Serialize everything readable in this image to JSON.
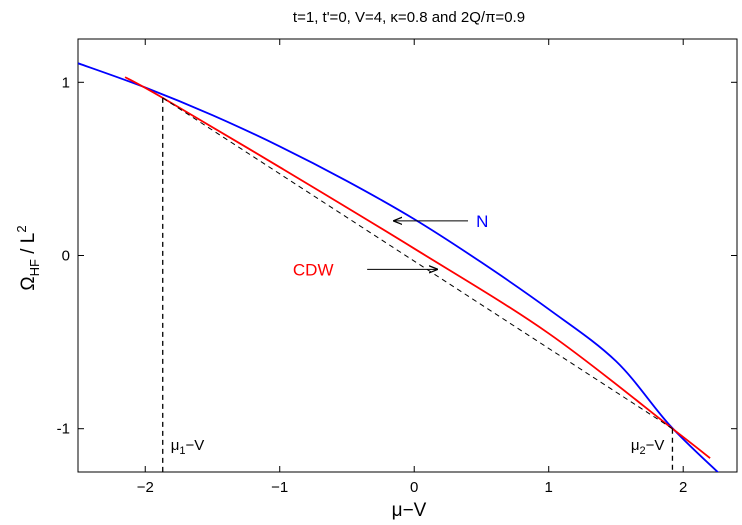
{
  "chart_data": {
    "type": "line",
    "title": "t=1, t'=0, V=4, κ=0.8 and 2Q/π=0.9",
    "xlabel": "μ−V",
    "ylabel_main": "Ω",
    "ylabel_sub": "HF",
    "ylabel_rest": " / L",
    "ylabel_sup": "2",
    "xlim": [
      -2.5,
      2.4
    ],
    "ylim": [
      -1.25,
      1.25
    ],
    "x_ticks": [
      {
        "value": -2,
        "label": "−2"
      },
      {
        "value": -1,
        "label": "−1"
      },
      {
        "value": 0,
        "label": "0"
      },
      {
        "value": 1,
        "label": "1"
      },
      {
        "value": 2,
        "label": "2"
      }
    ],
    "y_ticks": [
      {
        "value": -1,
        "label": "-1"
      },
      {
        "value": 0,
        "label": "0"
      },
      {
        "value": 1,
        "label": "1"
      }
    ],
    "series": [
      {
        "name": "N",
        "color": "#0000ff",
        "style": "solid",
        "points": [
          [
            -2.5,
            1.11
          ],
          [
            -2.0,
            0.97
          ],
          [
            -1.5,
            0.81
          ],
          [
            -1.0,
            0.63
          ],
          [
            -0.5,
            0.43
          ],
          [
            0.0,
            0.21
          ],
          [
            0.5,
            -0.04
          ],
          [
            1.0,
            -0.31
          ],
          [
            1.5,
            -0.61
          ],
          [
            1.9,
            -0.98
          ],
          [
            2.27,
            -1.26
          ]
        ]
      },
      {
        "name": "CDW",
        "color": "#ff0000",
        "style": "solid",
        "points": [
          [
            -2.15,
            1.03
          ],
          [
            -1.87,
            0.91
          ],
          [
            -1.0,
            0.51
          ],
          [
            0.0,
            0.04
          ],
          [
            1.0,
            -0.45
          ],
          [
            1.92,
            -1.0
          ],
          [
            2.2,
            -1.17
          ]
        ]
      },
      {
        "name": "",
        "color": "#000000",
        "style": "dashed",
        "points": [
          [
            -1.87,
            0.91
          ],
          [
            1.92,
            -1.0
          ]
        ]
      }
    ],
    "vertical_markers": [
      {
        "x": -1.87,
        "y_top": 0.91,
        "label_main": "μ",
        "label_sub": "1",
        "label_rest": "−V"
      },
      {
        "x": 1.92,
        "y_top": -1.0,
        "label_main": "μ",
        "label_sub": "2",
        "label_rest": "−V"
      }
    ],
    "annotations": [
      {
        "text": "N",
        "color": "#0000ff",
        "text_x": 0.46,
        "text_y": 0.2,
        "arrow_from": [
          0.4,
          0.2
        ],
        "arrow_to": [
          -0.15,
          0.2
        ]
      },
      {
        "text": "CDW",
        "color": "#ff0000",
        "text_x": -0.6,
        "text_y": -0.08,
        "arrow_from": [
          -0.35,
          -0.08
        ],
        "arrow_to": [
          0.17,
          -0.08
        ]
      }
    ]
  }
}
